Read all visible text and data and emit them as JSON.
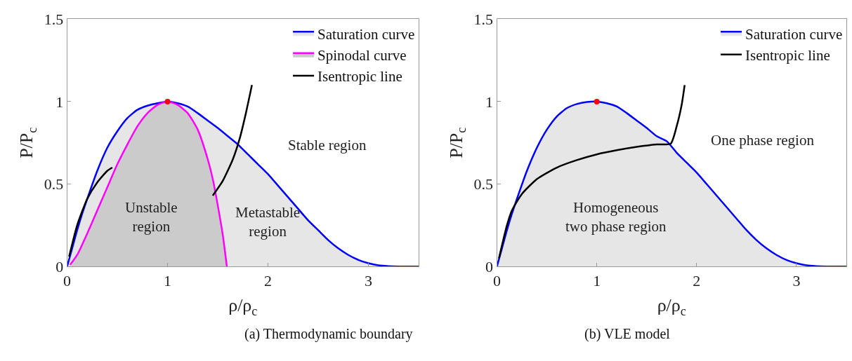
{
  "chart_data": [
    {
      "type": "line",
      "title": "(a) Thermodynamic boundary",
      "xlabel": "ρ/ρ$_{c}$",
      "ylabel": "P/P$_{c}$",
      "xlim": [
        0,
        3.5
      ],
      "xticks": [
        0,
        1,
        2,
        3
      ],
      "ylim": [
        0,
        1.5
      ],
      "yticks": [
        0,
        0.5,
        1,
        1.5
      ],
      "legend": "top right",
      "marker": "none",
      "line_style": "solid",
      "series": [
        {
          "name": "Saturation curve",
          "type": "area",
          "color": "#0000ff",
          "x": [
            0,
            0.05,
            0.1,
            0.15,
            0.2,
            0.3,
            0.4,
            0.5,
            0.6,
            0.7,
            0.8,
            0.9,
            1.0,
            1.1,
            1.2,
            1.3,
            1.4,
            1.5,
            1.6,
            1.7,
            1.8,
            1.9,
            2.0,
            2.1,
            2.2,
            2.3,
            2.4,
            2.5,
            2.6,
            2.7,
            2.8,
            2.9,
            3.0,
            3.1,
            3.2,
            3.3,
            3.4,
            3.5
          ],
          "values": [
            0,
            0.11,
            0.22,
            0.32,
            0.41,
            0.58,
            0.72,
            0.82,
            0.9,
            0.95,
            0.975,
            0.99,
            1.0,
            0.99,
            0.97,
            0.93,
            0.885,
            0.84,
            0.79,
            0.74,
            0.68,
            0.62,
            0.56,
            0.49,
            0.42,
            0.35,
            0.28,
            0.22,
            0.16,
            0.11,
            0.07,
            0.04,
            0.02,
            0.007,
            0.002,
            0,
            0,
            0
          ]
        },
        {
          "name": "Spinodal curve",
          "type": "area",
          "color": "#ff00ff",
          "x": [
            0.03,
            0.1,
            0.2,
            0.3,
            0.4,
            0.5,
            0.6,
            0.7,
            0.8,
            0.9,
            1.0,
            1.1,
            1.2,
            1.3,
            1.4,
            1.45,
            1.5,
            1.55,
            1.59
          ],
          "values": [
            0.01,
            0.07,
            0.2,
            0.34,
            0.48,
            0.62,
            0.74,
            0.85,
            0.93,
            0.98,
            1.0,
            0.98,
            0.93,
            0.83,
            0.65,
            0.53,
            0.37,
            0.19,
            0
          ]
        },
        {
          "name": "Isentropic line",
          "color": "#000000",
          "x": [
            0.02,
            0.1,
            0.2,
            0.3,
            0.4,
            0.45,
            1.0,
            1.45,
            1.55,
            1.65,
            1.72,
            1.78,
            1.84
          ],
          "values": [
            0.06,
            0.25,
            0.41,
            0.51,
            0.58,
            0.6,
            null,
            0.43,
            0.52,
            0.65,
            0.78,
            0.93,
            1.1
          ]
        },
        {
          "type": "scatter",
          "marker": "circle",
          "color": "#ff0000",
          "x": [
            1
          ],
          "values": [
            1
          ]
        }
      ],
      "annotations": [
        "Unstable\nregion",
        "Metastable\nregion",
        "Stable region"
      ]
    },
    {
      "type": "line",
      "title": "(b) VLE model",
      "xlabel": "ρ/ρ$_{c}$",
      "ylabel": "P/P$_{c}$",
      "xlim": [
        0,
        3.5
      ],
      "xticks": [
        0,
        1,
        2,
        3
      ],
      "ylim": [
        0,
        1.5
      ],
      "yticks": [
        0,
        0.5,
        1,
        1.5
      ],
      "legend": "top right",
      "marker": "none",
      "line_style": "solid",
      "series": [
        {
          "name": "Saturation curve",
          "type": "area",
          "color": "#0000ff",
          "x": [
            0,
            0.05,
            0.1,
            0.15,
            0.2,
            0.3,
            0.4,
            0.5,
            0.6,
            0.7,
            0.8,
            0.9,
            1.0,
            1.1,
            1.2,
            1.3,
            1.4,
            1.5,
            1.6,
            1.7,
            1.8,
            1.9,
            2.0,
            2.1,
            2.2,
            2.3,
            2.4,
            2.5,
            2.6,
            2.7,
            2.8,
            2.9,
            3.0,
            3.1,
            3.2,
            3.3,
            3.4,
            3.5
          ],
          "values": [
            0,
            0.11,
            0.22,
            0.32,
            0.41,
            0.58,
            0.72,
            0.83,
            0.91,
            0.96,
            0.985,
            0.997,
            1.0,
            0.99,
            0.97,
            0.93,
            0.885,
            0.84,
            0.79,
            0.76,
            0.69,
            0.63,
            0.57,
            0.5,
            0.43,
            0.36,
            0.29,
            0.22,
            0.16,
            0.11,
            0.07,
            0.04,
            0.02,
            0.007,
            0.002,
            0,
            0,
            0
          ]
        },
        {
          "name": "Isentropic line",
          "color": "#000000",
          "x": [
            0.02,
            0.1,
            0.15,
            0.25,
            0.4,
            0.6,
            0.8,
            1.0,
            1.2,
            1.4,
            1.6,
            1.74,
            1.8,
            1.85,
            1.88
          ],
          "values": [
            0.05,
            0.25,
            0.34,
            0.44,
            0.53,
            0.6,
            0.645,
            0.68,
            0.705,
            0.725,
            0.74,
            0.745,
            0.85,
            0.98,
            1.1
          ]
        },
        {
          "type": "scatter",
          "marker": "circle",
          "color": "#ff0000",
          "x": [
            1
          ],
          "values": [
            1
          ]
        }
      ],
      "annotations": [
        "Homogeneous\ntwo phase region",
        "One phase region"
      ]
    }
  ]
}
